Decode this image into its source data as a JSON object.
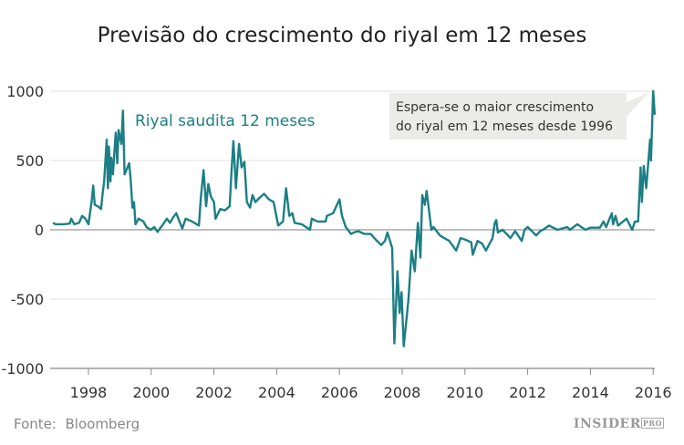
{
  "chart_data": {
    "type": "line",
    "title": "Previsão do crescimento do riyal em 12 meses",
    "series_label": "Riyal saudita 12 meses",
    "annotation": [
      "Espera-se o maior crescimento",
      "do riyal em 12 meses desde 1996"
    ],
    "source_label": "Fonte:",
    "source": "Bloomberg",
    "logo": "INSIDER PRO",
    "line_color": "#1b7f85",
    "xlim": [
      1996.8,
      2016.1
    ],
    "ylim": [
      -1000,
      1000
    ],
    "yticks": [
      1000,
      500,
      0,
      -500,
      -1000
    ],
    "xticks": [
      1998,
      2000,
      2002,
      2004,
      2006,
      2008,
      2010,
      2012,
      2014,
      2016
    ],
    "grid": true,
    "series": [
      {
        "name": "Riyal saudita 12 meses",
        "points": [
          [
            1996.87,
            50
          ],
          [
            1996.95,
            40
          ],
          [
            1997.2,
            40
          ],
          [
            1997.4,
            45
          ],
          [
            1997.45,
            80
          ],
          [
            1997.55,
            40
          ],
          [
            1997.7,
            50
          ],
          [
            1997.8,
            100
          ],
          [
            1997.9,
            80
          ],
          [
            1998.0,
            40
          ],
          [
            1998.1,
            200
          ],
          [
            1998.15,
            320
          ],
          [
            1998.2,
            180
          ],
          [
            1998.3,
            170
          ],
          [
            1998.4,
            150
          ],
          [
            1998.45,
            260
          ],
          [
            1998.5,
            350
          ],
          [
            1998.58,
            650
          ],
          [
            1998.62,
            300
          ],
          [
            1998.65,
            600
          ],
          [
            1998.7,
            350
          ],
          [
            1998.73,
            520
          ],
          [
            1998.78,
            400
          ],
          [
            1998.87,
            700
          ],
          [
            1998.92,
            480
          ],
          [
            1998.96,
            720
          ],
          [
            1999.05,
            620
          ],
          [
            1999.1,
            860
          ],
          [
            1999.15,
            400
          ],
          [
            1999.3,
            480
          ],
          [
            1999.35,
            350
          ],
          [
            1999.4,
            160
          ],
          [
            1999.45,
            200
          ],
          [
            1999.5,
            40
          ],
          [
            1999.6,
            80
          ],
          [
            1999.75,
            60
          ],
          [
            1999.85,
            20
          ],
          [
            1999.98,
            0
          ],
          [
            2000.1,
            20
          ],
          [
            2000.2,
            -15
          ],
          [
            2000.35,
            30
          ],
          [
            2000.5,
            80
          ],
          [
            2000.6,
            50
          ],
          [
            2000.7,
            90
          ],
          [
            2000.8,
            120
          ],
          [
            2000.9,
            60
          ],
          [
            2000.99,
            10
          ],
          [
            2001.1,
            80
          ],
          [
            2001.3,
            60
          ],
          [
            2001.52,
            30
          ],
          [
            2001.58,
            230
          ],
          [
            2001.67,
            430
          ],
          [
            2001.75,
            170
          ],
          [
            2001.82,
            330
          ],
          [
            2001.9,
            240
          ],
          [
            2002.0,
            200
          ],
          [
            2002.05,
            80
          ],
          [
            2002.2,
            150
          ],
          [
            2002.35,
            140
          ],
          [
            2002.5,
            170
          ],
          [
            2002.55,
            380
          ],
          [
            2002.62,
            640
          ],
          [
            2002.7,
            300
          ],
          [
            2002.8,
            620
          ],
          [
            2002.88,
            450
          ],
          [
            2002.97,
            490
          ],
          [
            2003.05,
            200
          ],
          [
            2003.15,
            160
          ],
          [
            2003.23,
            250
          ],
          [
            2003.32,
            200
          ],
          [
            2003.45,
            230
          ],
          [
            2003.6,
            260
          ],
          [
            2003.75,
            220
          ],
          [
            2003.9,
            200
          ],
          [
            2004.05,
            30
          ],
          [
            2004.2,
            60
          ],
          [
            2004.3,
            300
          ],
          [
            2004.4,
            100
          ],
          [
            2004.5,
            120
          ],
          [
            2004.57,
            50
          ],
          [
            2004.8,
            40
          ],
          [
            2005.06,
            0
          ],
          [
            2005.12,
            80
          ],
          [
            2005.3,
            60
          ],
          [
            2005.45,
            60
          ],
          [
            2005.56,
            60
          ],
          [
            2005.6,
            100
          ],
          [
            2005.8,
            120
          ],
          [
            2006.0,
            220
          ],
          [
            2006.08,
            100
          ],
          [
            2006.2,
            20
          ],
          [
            2006.37,
            -30
          ],
          [
            2006.45,
            -20
          ],
          [
            2006.6,
            -10
          ],
          [
            2006.8,
            -30
          ],
          [
            2007.0,
            -30
          ],
          [
            2007.15,
            -70
          ],
          [
            2007.33,
            -110
          ],
          [
            2007.45,
            -80
          ],
          [
            2007.53,
            -20
          ],
          [
            2007.68,
            -130
          ],
          [
            2007.75,
            -820
          ],
          [
            2007.85,
            -300
          ],
          [
            2007.92,
            -600
          ],
          [
            2007.98,
            -450
          ],
          [
            2008.05,
            -840
          ],
          [
            2008.2,
            -500
          ],
          [
            2008.3,
            -150
          ],
          [
            2008.4,
            -300
          ],
          [
            2008.5,
            50
          ],
          [
            2008.58,
            -200
          ],
          [
            2008.64,
            250
          ],
          [
            2008.72,
            180
          ],
          [
            2008.78,
            280
          ],
          [
            2008.93,
            0
          ],
          [
            2009.0,
            20
          ],
          [
            2009.2,
            -40
          ],
          [
            2009.34,
            -60
          ],
          [
            2009.5,
            -80
          ],
          [
            2009.72,
            -150
          ],
          [
            2009.86,
            -60
          ],
          [
            2010.0,
            -70
          ],
          [
            2010.2,
            -90
          ],
          [
            2010.25,
            -180
          ],
          [
            2010.4,
            -80
          ],
          [
            2010.55,
            -100
          ],
          [
            2010.67,
            -150
          ],
          [
            2010.88,
            -60
          ],
          [
            2010.95,
            50
          ],
          [
            2011.0,
            70
          ],
          [
            2011.05,
            -20
          ],
          [
            2011.2,
            0
          ],
          [
            2011.45,
            -60
          ],
          [
            2011.6,
            -10
          ],
          [
            2011.81,
            -80
          ],
          [
            2011.9,
            0
          ],
          [
            2012.0,
            20
          ],
          [
            2012.27,
            -40
          ],
          [
            2012.4,
            -10
          ],
          [
            2012.55,
            10
          ],
          [
            2012.68,
            30
          ],
          [
            2012.95,
            0
          ],
          [
            2013.26,
            20
          ],
          [
            2013.35,
            0
          ],
          [
            2013.58,
            40
          ],
          [
            2013.84,
            0
          ],
          [
            2014.0,
            15
          ],
          [
            2014.3,
            15
          ],
          [
            2014.42,
            60
          ],
          [
            2014.5,
            20
          ],
          [
            2014.68,
            120
          ],
          [
            2014.72,
            40
          ],
          [
            2014.8,
            100
          ],
          [
            2014.88,
            30
          ],
          [
            2015.15,
            80
          ],
          [
            2015.33,
            0
          ],
          [
            2015.42,
            60
          ],
          [
            2015.52,
            60
          ],
          [
            2015.55,
            200
          ],
          [
            2015.6,
            450
          ],
          [
            2015.64,
            200
          ],
          [
            2015.7,
            460
          ],
          [
            2015.78,
            300
          ],
          [
            2015.9,
            650
          ],
          [
            2015.93,
            500
          ],
          [
            2016.0,
            1000
          ],
          [
            2016.05,
            830
          ]
        ]
      }
    ]
  }
}
